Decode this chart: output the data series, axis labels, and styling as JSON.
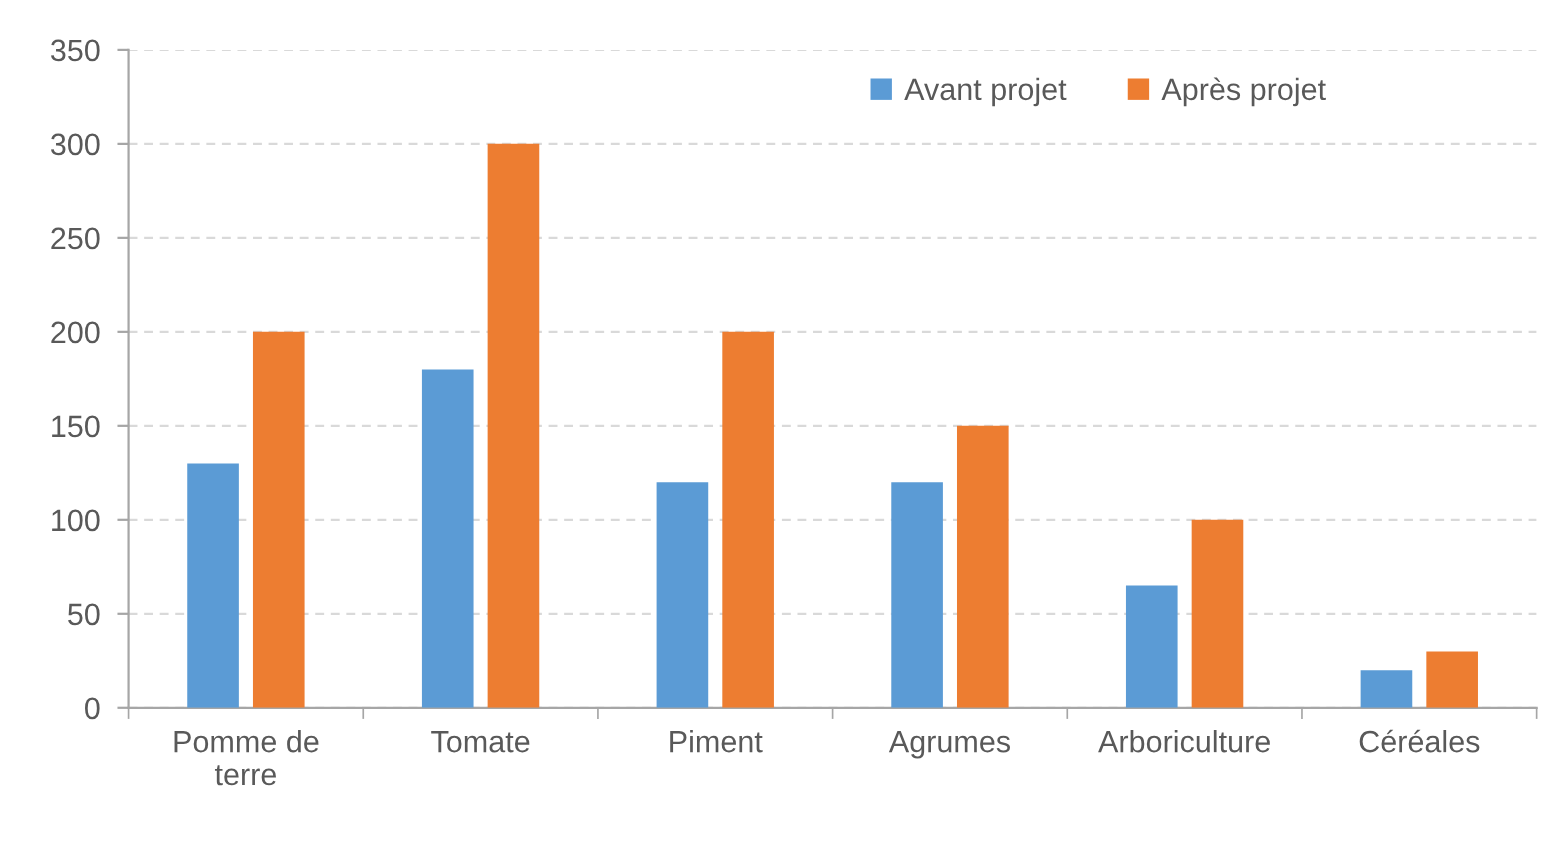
{
  "chart_data": {
    "type": "bar",
    "categories": [
      "Pomme de\nterre",
      "Tomate",
      "Piment",
      "Agrumes",
      "Arboriculture",
      "Céréales"
    ],
    "series": [
      {
        "name": "Avant projet",
        "color": "#5b9bd5",
        "values": [
          130,
          180,
          120,
          120,
          65,
          20
        ]
      },
      {
        "name": "Après projet",
        "color": "#ed7d31",
        "values": [
          200,
          300,
          200,
          150,
          100,
          30
        ]
      }
    ],
    "ylim": [
      0,
      350
    ],
    "yticks": [
      0,
      50,
      100,
      150,
      200,
      250,
      300,
      350
    ],
    "grid": "y",
    "legend": "top right"
  }
}
